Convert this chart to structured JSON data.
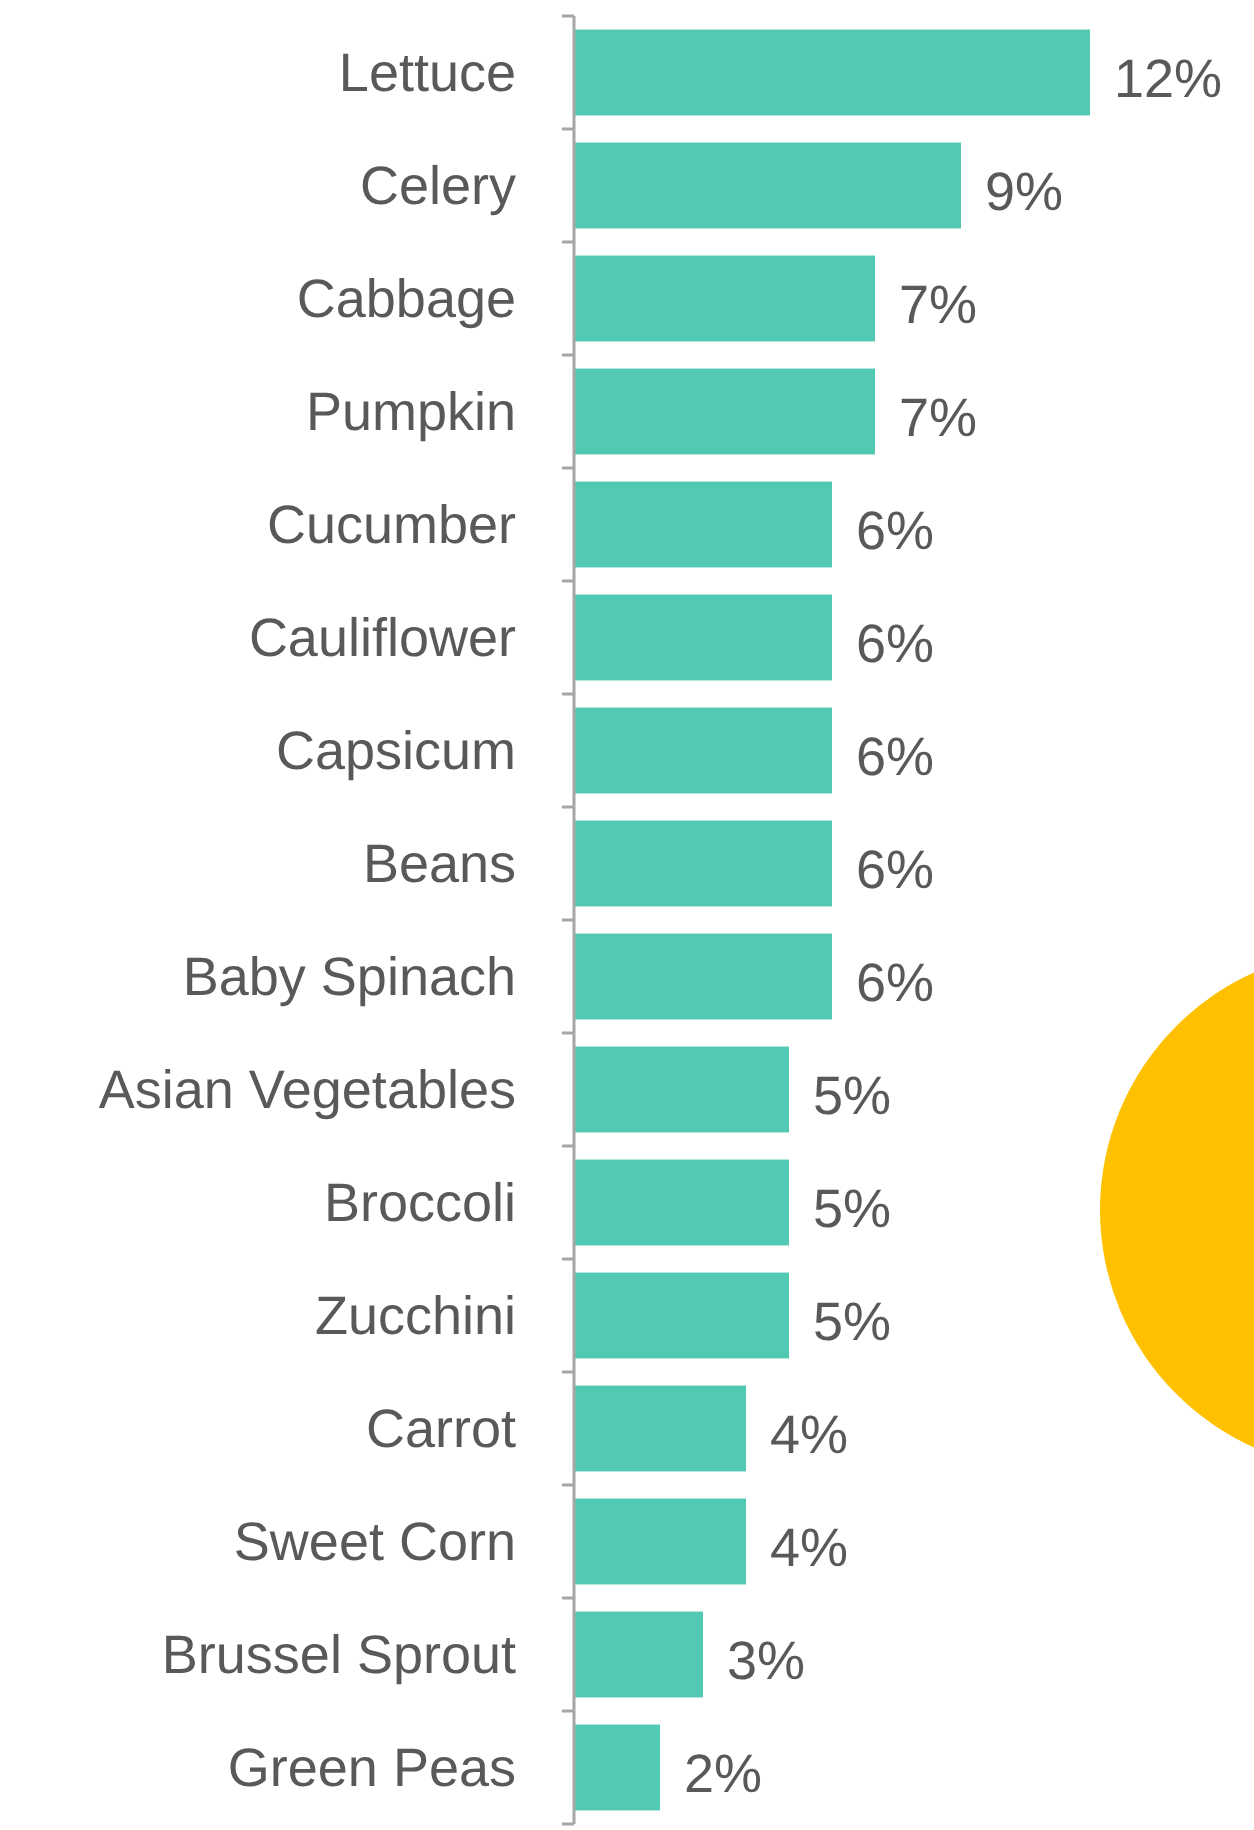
{
  "chart_data": {
    "type": "bar",
    "orientation": "horizontal",
    "categories": [
      "Lettuce",
      "Celery",
      "Cabbage",
      "Pumpkin",
      "Cucumber",
      "Cauliflower",
      "Capsicum",
      "Beans",
      "Baby Spinach",
      "Asian Vegetables",
      "Broccoli",
      "Zucchini",
      "Carrot",
      "Sweet Corn",
      "Brussel Sprout",
      "Green Peas"
    ],
    "values": [
      12,
      9,
      7,
      7,
      6,
      6,
      6,
      6,
      6,
      5,
      5,
      5,
      4,
      4,
      3,
      2
    ],
    "value_labels": [
      "12%",
      "9%",
      "7%",
      "7%",
      "6%",
      "6%",
      "6%",
      "6%",
      "6%",
      "5%",
      "5%",
      "5%",
      "4%",
      "4%",
      "3%",
      "2%"
    ],
    "color": "#52c9b2"
  }
}
